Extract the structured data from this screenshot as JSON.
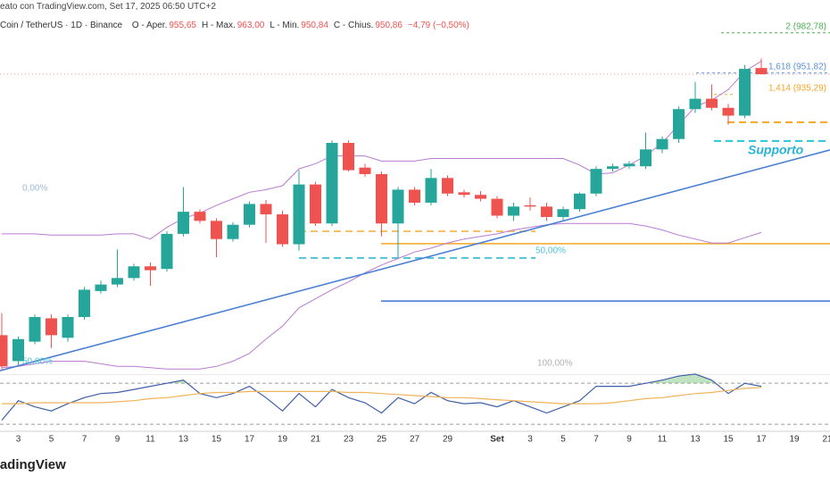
{
  "chart_data": {
    "type": "candlestick",
    "title": "eato con TradingView.com, Set 17, 2025 06:50 UTC+2",
    "subtitle": "Coin / TetherUS · 1D · Binance",
    "legend": [
      {
        "label": "O - Aper.",
        "value": "955,65"
      },
      {
        "label": "H - Max.",
        "value": "963,00"
      },
      {
        "label": "L - Min.",
        "value": "950,84"
      },
      {
        "label": "C - Chius.",
        "value": "950,86"
      }
    ],
    "change": "−4,79 (−0,50%)",
    "watermark": "radingView",
    "up_color": "#26a69a",
    "down_color": "#ef5350",
    "categories": [
      null,
      "3",
      null,
      "5",
      null,
      "7",
      null,
      "9",
      null,
      "11",
      null,
      "13",
      null,
      "15",
      null,
      "17",
      null,
      "19",
      null,
      "21",
      null,
      "23",
      null,
      "25",
      null,
      "27",
      null,
      "29",
      null,
      null,
      "Set",
      null,
      "3",
      null,
      "5",
      null,
      "7",
      null,
      "9",
      null,
      "11",
      null,
      "13",
      null,
      "15",
      null,
      "17",
      null,
      "19",
      null,
      "21"
    ],
    "open": [
      750,
      730,
      745,
      763,
      748,
      764,
      784,
      789,
      794,
      803,
      801,
      828,
      845,
      838,
      824,
      835,
      851,
      843,
      820,
      866,
      836,
      898,
      879,
      874,
      836,
      862,
      852,
      871,
      860,
      858,
      855,
      842,
      850,
      849,
      841,
      847,
      859,
      878,
      880,
      880,
      893,
      901,
      924,
      932,
      925,
      919,
      955.65,
      null,
      null,
      null,
      null
    ],
    "high": [
      767,
      749,
      766,
      766,
      766,
      787,
      792,
      816,
      805,
      806,
      830,
      864,
      847,
      840,
      837,
      853,
      854,
      846,
      877,
      868,
      900,
      900,
      882,
      876,
      864,
      864,
      878,
      873,
      862,
      861,
      857,
      852,
      856,
      852,
      849,
      860,
      880,
      882,
      884,
      906,
      903,
      926,
      945,
      943,
      928,
      958,
      963,
      null,
      null,
      null,
      null
    ],
    "low": [
      723,
      727,
      743,
      740,
      745,
      762,
      782,
      787,
      792,
      788,
      799,
      826,
      836,
      810,
      822,
      833,
      821,
      818,
      815,
      834,
      834,
      876,
      872,
      826,
      810,
      850,
      850,
      857,
      856,
      853,
      840,
      838,
      846,
      838,
      838,
      845,
      857,
      876,
      878,
      878,
      890,
      898,
      921,
      923,
      912,
      917,
      950.84,
      null,
      null,
      null,
      null
    ],
    "close": [
      726,
      747,
      764,
      750,
      764,
      785,
      789,
      794,
      803,
      800,
      828,
      845,
      838,
      824,
      835,
      851,
      843,
      820,
      866,
      836,
      898,
      877,
      874,
      836,
      862,
      852,
      871,
      859,
      858,
      855,
      842,
      849,
      849,
      841,
      847,
      859,
      878,
      880,
      882,
      893,
      901,
      924,
      932,
      925,
      919,
      955,
      950.86,
      null,
      null,
      null,
      null
    ],
    "ylim": [
      720,
      1008
    ],
    "bands": {
      "color": "#b97bd0",
      "upper": [
        828,
        828,
        828,
        827,
        827,
        827,
        827,
        828,
        828,
        824,
        833,
        840,
        844,
        850,
        855,
        860,
        862,
        865,
        878,
        882,
        888,
        888,
        888,
        884,
        884,
        884,
        886,
        886,
        886,
        886,
        886,
        886,
        886,
        886,
        886,
        881,
        874,
        875,
        881,
        888,
        898,
        912,
        926,
        931,
        939,
        953,
        961,
        null,
        null,
        null,
        null
      ],
      "lower": [
        725,
        726,
        728,
        730,
        730,
        730,
        728,
        726,
        726,
        725,
        724,
        724,
        724,
        726,
        730,
        736,
        747,
        757,
        771,
        778,
        785,
        791,
        798,
        804,
        809,
        814,
        817,
        821,
        824,
        826,
        828,
        831,
        833,
        835,
        836,
        836,
        836,
        836,
        836,
        834,
        831,
        827,
        824,
        821,
        821,
        825,
        829,
        null,
        null,
        null,
        null
      ]
    },
    "trendline": {
      "color": "#4a7fd4",
      "values": [
        722.7,
        892.6
      ]
    },
    "levels": [
      {
        "value": 982.78,
        "label": "2 (982,78)",
        "color": "#4caf50"
      },
      {
        "value": 951.82,
        "label": "1,618 (951,82)",
        "color": "#5b8fd9"
      },
      {
        "value": 935.29,
        "label": "1,414 (935,29)",
        "color": "#f5a623"
      }
    ],
    "lines": [
      {
        "value": 820.4,
        "color": "#f5a623",
        "dashed": false
      },
      {
        "value": 776.3,
        "color": "#3a6fd0",
        "dashed": false
      },
      {
        "value": 830.0,
        "color": "#f5c26b",
        "dashed": true
      },
      {
        "value": 809.4,
        "color": "#4cc3d9",
        "dashed": true
      },
      {
        "value": 913.9,
        "color": "#f5a623",
        "dashed": true
      },
      {
        "value": 899.5,
        "color": "#26c6da",
        "dashed": true
      }
    ],
    "annotations": [
      "Supporto",
      "0,00%",
      "50,00%",
      "100,00%",
      "50,00%"
    ],
    "oscillator": {
      "ylim": [
        24,
        78
      ],
      "levels": [
        70,
        30
      ],
      "series": [
        {
          "color": "#3f5fa8",
          "values": [
            34,
            53,
            47,
            43,
            50,
            56,
            60,
            61,
            64,
            67,
            70,
            73,
            60,
            56,
            60,
            67,
            56,
            43,
            60,
            47,
            64,
            56,
            51,
            41,
            56,
            50,
            61,
            53,
            50,
            51,
            47,
            53,
            47,
            41,
            47,
            53,
            67,
            67,
            67,
            70,
            73,
            77,
            79,
            73,
            60,
            70,
            67,
            null,
            null,
            null,
            null
          ]
        },
        {
          "color": "#f0b35a",
          "values": [
            50,
            50,
            51,
            51,
            51,
            51,
            51,
            52,
            53,
            55,
            56,
            58,
            60,
            61,
            61,
            62,
            62,
            62,
            62,
            62,
            62,
            61,
            61,
            60,
            59,
            58,
            57,
            56,
            56,
            55,
            54,
            53,
            52,
            51,
            50,
            50,
            50,
            51,
            53,
            55,
            56,
            58,
            60,
            61,
            63,
            65,
            66,
            null,
            null,
            null,
            null
          ]
        }
      ],
      "fill_color": "#4caf50"
    }
  }
}
